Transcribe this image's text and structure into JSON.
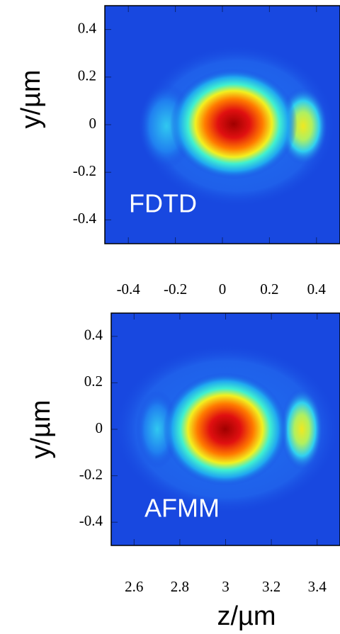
{
  "chart_data": [
    {
      "type": "heatmap",
      "ylabel": "y/µm",
      "annotation": "FDTD",
      "xlim": [
        -0.5,
        0.5
      ],
      "xticks": [
        -0.4,
        -0.2,
        0,
        0.2,
        0.4
      ],
      "ylim": [
        -0.5,
        0.5
      ],
      "yticks": [
        0.4,
        0.2,
        0,
        -0.2,
        -0.4
      ]
    },
    {
      "type": "heatmap",
      "ylabel": "y/µm",
      "xlabel": "z/µm",
      "annotation": "AFMM",
      "xlim": [
        2.5,
        3.5
      ],
      "xticks": [
        2.6,
        2.8,
        3,
        3.2,
        3.4
      ],
      "ylim": [
        -0.5,
        0.5
      ],
      "yticks": [
        0.4,
        0.2,
        0,
        -0.2,
        -0.4
      ]
    }
  ]
}
